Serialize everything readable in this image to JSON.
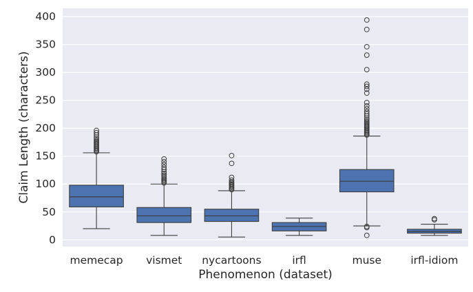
{
  "chart_data": {
    "type": "box",
    "xlabel": "Phenomenon (dataset)",
    "ylabel": "Claim Length (characters)",
    "ylim": [
      -12,
      415
    ],
    "yticks": [
      0,
      50,
      100,
      150,
      200,
      250,
      300,
      350,
      400
    ],
    "grid": true,
    "categories": [
      "memecap",
      "vismet",
      "nycartoons",
      "irfl",
      "muse",
      "irfl-idiom"
    ],
    "boxes": [
      {
        "category": "memecap",
        "whisker_low": 20,
        "q1": 59,
        "median": 77,
        "q3": 98,
        "whisker_high": 156,
        "outliers": [
          158,
          160,
          162,
          164,
          166,
          168,
          170,
          172,
          174,
          176,
          178,
          181,
          184,
          188,
          192,
          196
        ]
      },
      {
        "category": "vismet",
        "whisker_low": 8,
        "q1": 31,
        "median": 43,
        "q3": 58,
        "whisker_high": 100,
        "outliers": [
          102,
          104,
          106,
          108,
          110,
          113,
          116,
          119,
          122,
          126,
          130,
          135,
          140,
          145
        ]
      },
      {
        "category": "nycartoons",
        "whisker_low": 5,
        "q1": 33,
        "median": 43,
        "q3": 55,
        "whisker_high": 88,
        "outliers": [
          90,
          92,
          94,
          96,
          98,
          100,
          102,
          104,
          107,
          112,
          137,
          151
        ]
      },
      {
        "category": "irfl",
        "whisker_low": 8,
        "q1": 16,
        "median": 24,
        "q3": 31,
        "whisker_high": 39,
        "outliers": []
      },
      {
        "category": "muse",
        "whisker_low": 25,
        "q1": 86,
        "median": 105,
        "q3": 126,
        "whisker_high": 186,
        "outliers": [
          8,
          22,
          24,
          188,
          190,
          192,
          194,
          196,
          198,
          200,
          202,
          204,
          206,
          208,
          210,
          212,
          215,
          218,
          222,
          226,
          230,
          235,
          240,
          246,
          263,
          270,
          275,
          279,
          305,
          331,
          346,
          377,
          394
        ]
      },
      {
        "category": "irfl-idiom",
        "whisker_low": 8,
        "q1": 12,
        "median": 15,
        "q3": 19,
        "whisker_high": 28,
        "outliers": [
          36,
          38
        ]
      }
    ]
  },
  "colors": {
    "plot_background": "#eaeaf2",
    "grid": "#ffffff",
    "box_fill": "#4c72b0",
    "line": "#3d3d3d"
  }
}
